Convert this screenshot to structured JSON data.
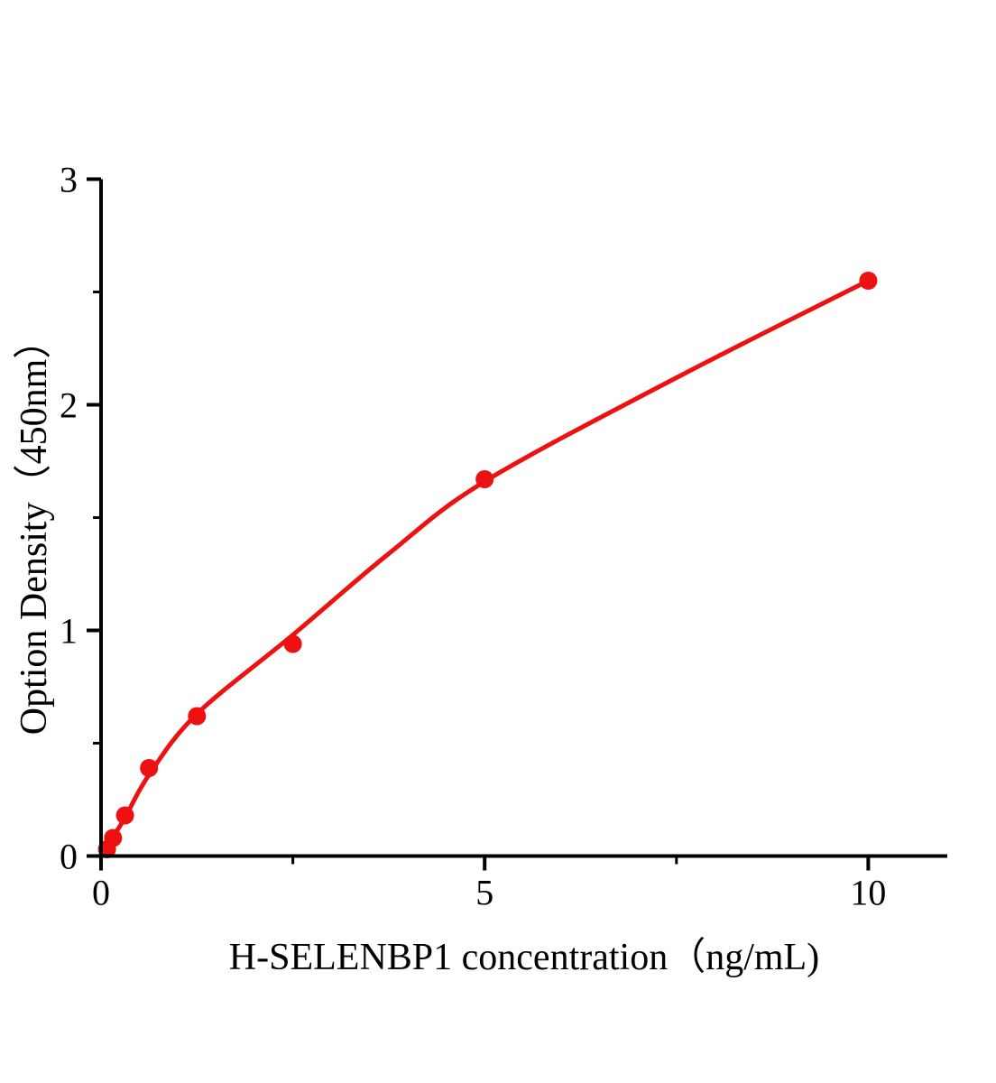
{
  "figure": {
    "background": "#ffffff"
  },
  "chart_data": {
    "type": "scatter",
    "title": "",
    "xlabel": "H-SELENBP1 concentration（ng/mL)",
    "ylabel": "Option Density（450nm）",
    "x": [
      0.078,
      0.156,
      0.3125,
      0.625,
      1.25,
      2.5,
      5,
      10
    ],
    "y": [
      0.03,
      0.08,
      0.18,
      0.39,
      0.62,
      0.94,
      1.67,
      2.55
    ],
    "fit_curve_anchors": [
      [
        0,
        0
      ],
      [
        0.156,
        0.085
      ],
      [
        0.3125,
        0.17
      ],
      [
        0.625,
        0.36
      ],
      [
        1.25,
        0.63
      ],
      [
        2.5,
        0.98
      ],
      [
        3.75,
        1.34
      ],
      [
        5,
        1.66
      ],
      [
        7.5,
        2.12
      ],
      [
        10,
        2.55
      ]
    ],
    "xlim": [
      0,
      11.03
    ],
    "ylim": [
      0,
      3.0
    ],
    "x_major_ticks": [
      0,
      5,
      10
    ],
    "x_minor_ticks": [
      2.5,
      7.5
    ],
    "y_major_ticks": [
      0,
      1,
      2,
      3
    ],
    "y_minor_ticks": [
      0.5,
      1.5,
      2.5
    ],
    "grid": false,
    "legend": null,
    "marker_color": "#ee1111",
    "line_color": "#ee1111",
    "axis_color": "#000000"
  }
}
